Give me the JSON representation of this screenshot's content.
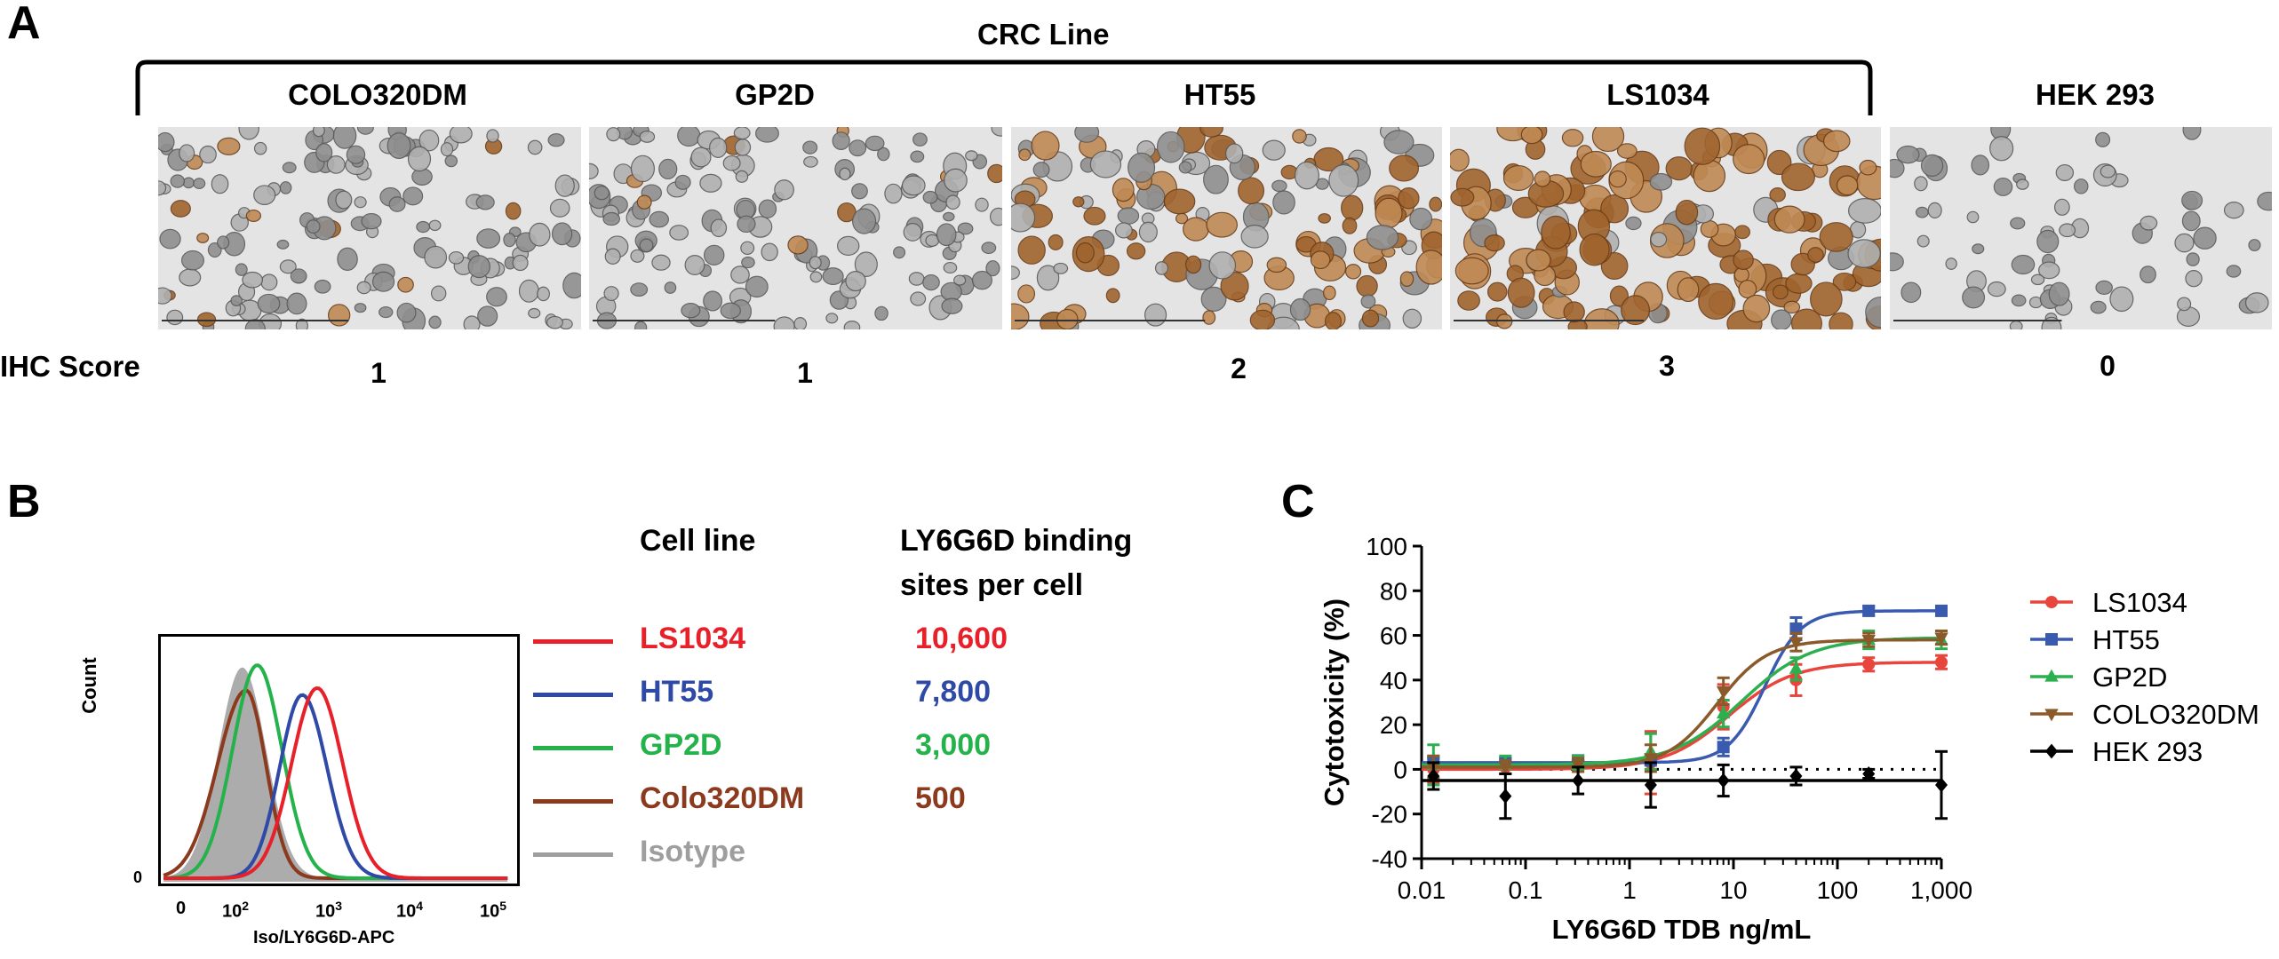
{
  "panel_a": {
    "letter": "A",
    "group_label": "CRC Line",
    "score_row_label": "IHC Score",
    "columns": [
      {
        "name": "COLO320DM",
        "score": "1",
        "stain": 0.08
      },
      {
        "name": "GP2D",
        "score": "1",
        "stain": 0.04
      },
      {
        "name": "HT55",
        "score": "2",
        "stain": 0.55
      },
      {
        "name": "LS1034",
        "score": "3",
        "stain": 0.85
      },
      {
        "name": "HEK 293",
        "score": "0",
        "stain": 0.0
      }
    ]
  },
  "panel_b": {
    "letter": "B",
    "hist": {
      "ylabel": "Count",
      "xlabel": "Iso/LY6G6D-APC",
      "y0_label": "0",
      "ticks": [
        {
          "base": "0",
          "exp": ""
        },
        {
          "base": "10",
          "exp": "2"
        },
        {
          "base": "10",
          "exp": "3"
        },
        {
          "base": "10",
          "exp": "4"
        },
        {
          "base": "10",
          "exp": "5"
        }
      ]
    },
    "table": {
      "col1_header": "Cell line",
      "col2_header_line1": "LY6G6D binding",
      "col2_header_line2": "sites per cell",
      "rows": [
        {
          "name": "LS1034",
          "sites": "10,600",
          "color": "#e8202a"
        },
        {
          "name": "HT55",
          "sites": "7,800",
          "color": "#2f4aa6"
        },
        {
          "name": "GP2D",
          "sites": "3,000",
          "color": "#24b24b"
        },
        {
          "name": "Colo320DM",
          "sites": "500",
          "color": "#8b3a1e"
        },
        {
          "name": "Isotype",
          "sites": "",
          "color": "#9e9e9e"
        }
      ]
    }
  },
  "chart_data": {
    "type": "line",
    "panel_letter": "C",
    "xlabel": "LY6G6D TDB ng/mL",
    "ylabel": "Cytotoxicity (%)",
    "xscale": "log",
    "xlim": [
      0.01,
      1000
    ],
    "ylim": [
      -40,
      100
    ],
    "xticks": [
      "0.01",
      "0.1",
      "1",
      "10",
      "100",
      "1,000"
    ],
    "yticks": [
      "-40",
      "-20",
      "0",
      "20",
      "40",
      "60",
      "80",
      "100"
    ],
    "legend_position": "right",
    "x": [
      0.013,
      0.064,
      0.32,
      1.6,
      8,
      40,
      200,
      1000
    ],
    "series": [
      {
        "name": "LS1034",
        "color": "#e8453c",
        "marker": "circle",
        "values": [
          0,
          1,
          2,
          3,
          28,
          40,
          47,
          48
        ],
        "bottom": 0,
        "top": 48,
        "ec50": 9,
        "hill": 1.4
      },
      {
        "name": "HT55",
        "color": "#3a5ab0",
        "marker": "square",
        "values": [
          3,
          3,
          4,
          4,
          10,
          63,
          71,
          71
        ],
        "bottom": 3,
        "top": 71,
        "ec50": 20,
        "hill": 2.5
      },
      {
        "name": "GP2D",
        "color": "#2cb04f",
        "marker": "triangle-up",
        "values": [
          2,
          2,
          3,
          8,
          25,
          45,
          58,
          58
        ],
        "bottom": 2,
        "top": 59,
        "ec50": 12,
        "hill": 1.3
      },
      {
        "name": "COLO320DM",
        "color": "#8b5a2b",
        "marker": "triangle-down",
        "values": [
          1,
          1,
          2,
          5,
          35,
          57,
          58,
          59
        ],
        "bottom": 1,
        "top": 58,
        "ec50": 7,
        "hill": 1.8
      },
      {
        "name": "HEK 293",
        "color": "#000000",
        "marker": "diamond",
        "values": [
          -3,
          -12,
          -5,
          -7,
          -5,
          -3,
          -2,
          -7
        ],
        "bottom": -5,
        "top": -5,
        "ec50": 10,
        "hill": 1
      }
    ],
    "reference_line_y": 0
  }
}
